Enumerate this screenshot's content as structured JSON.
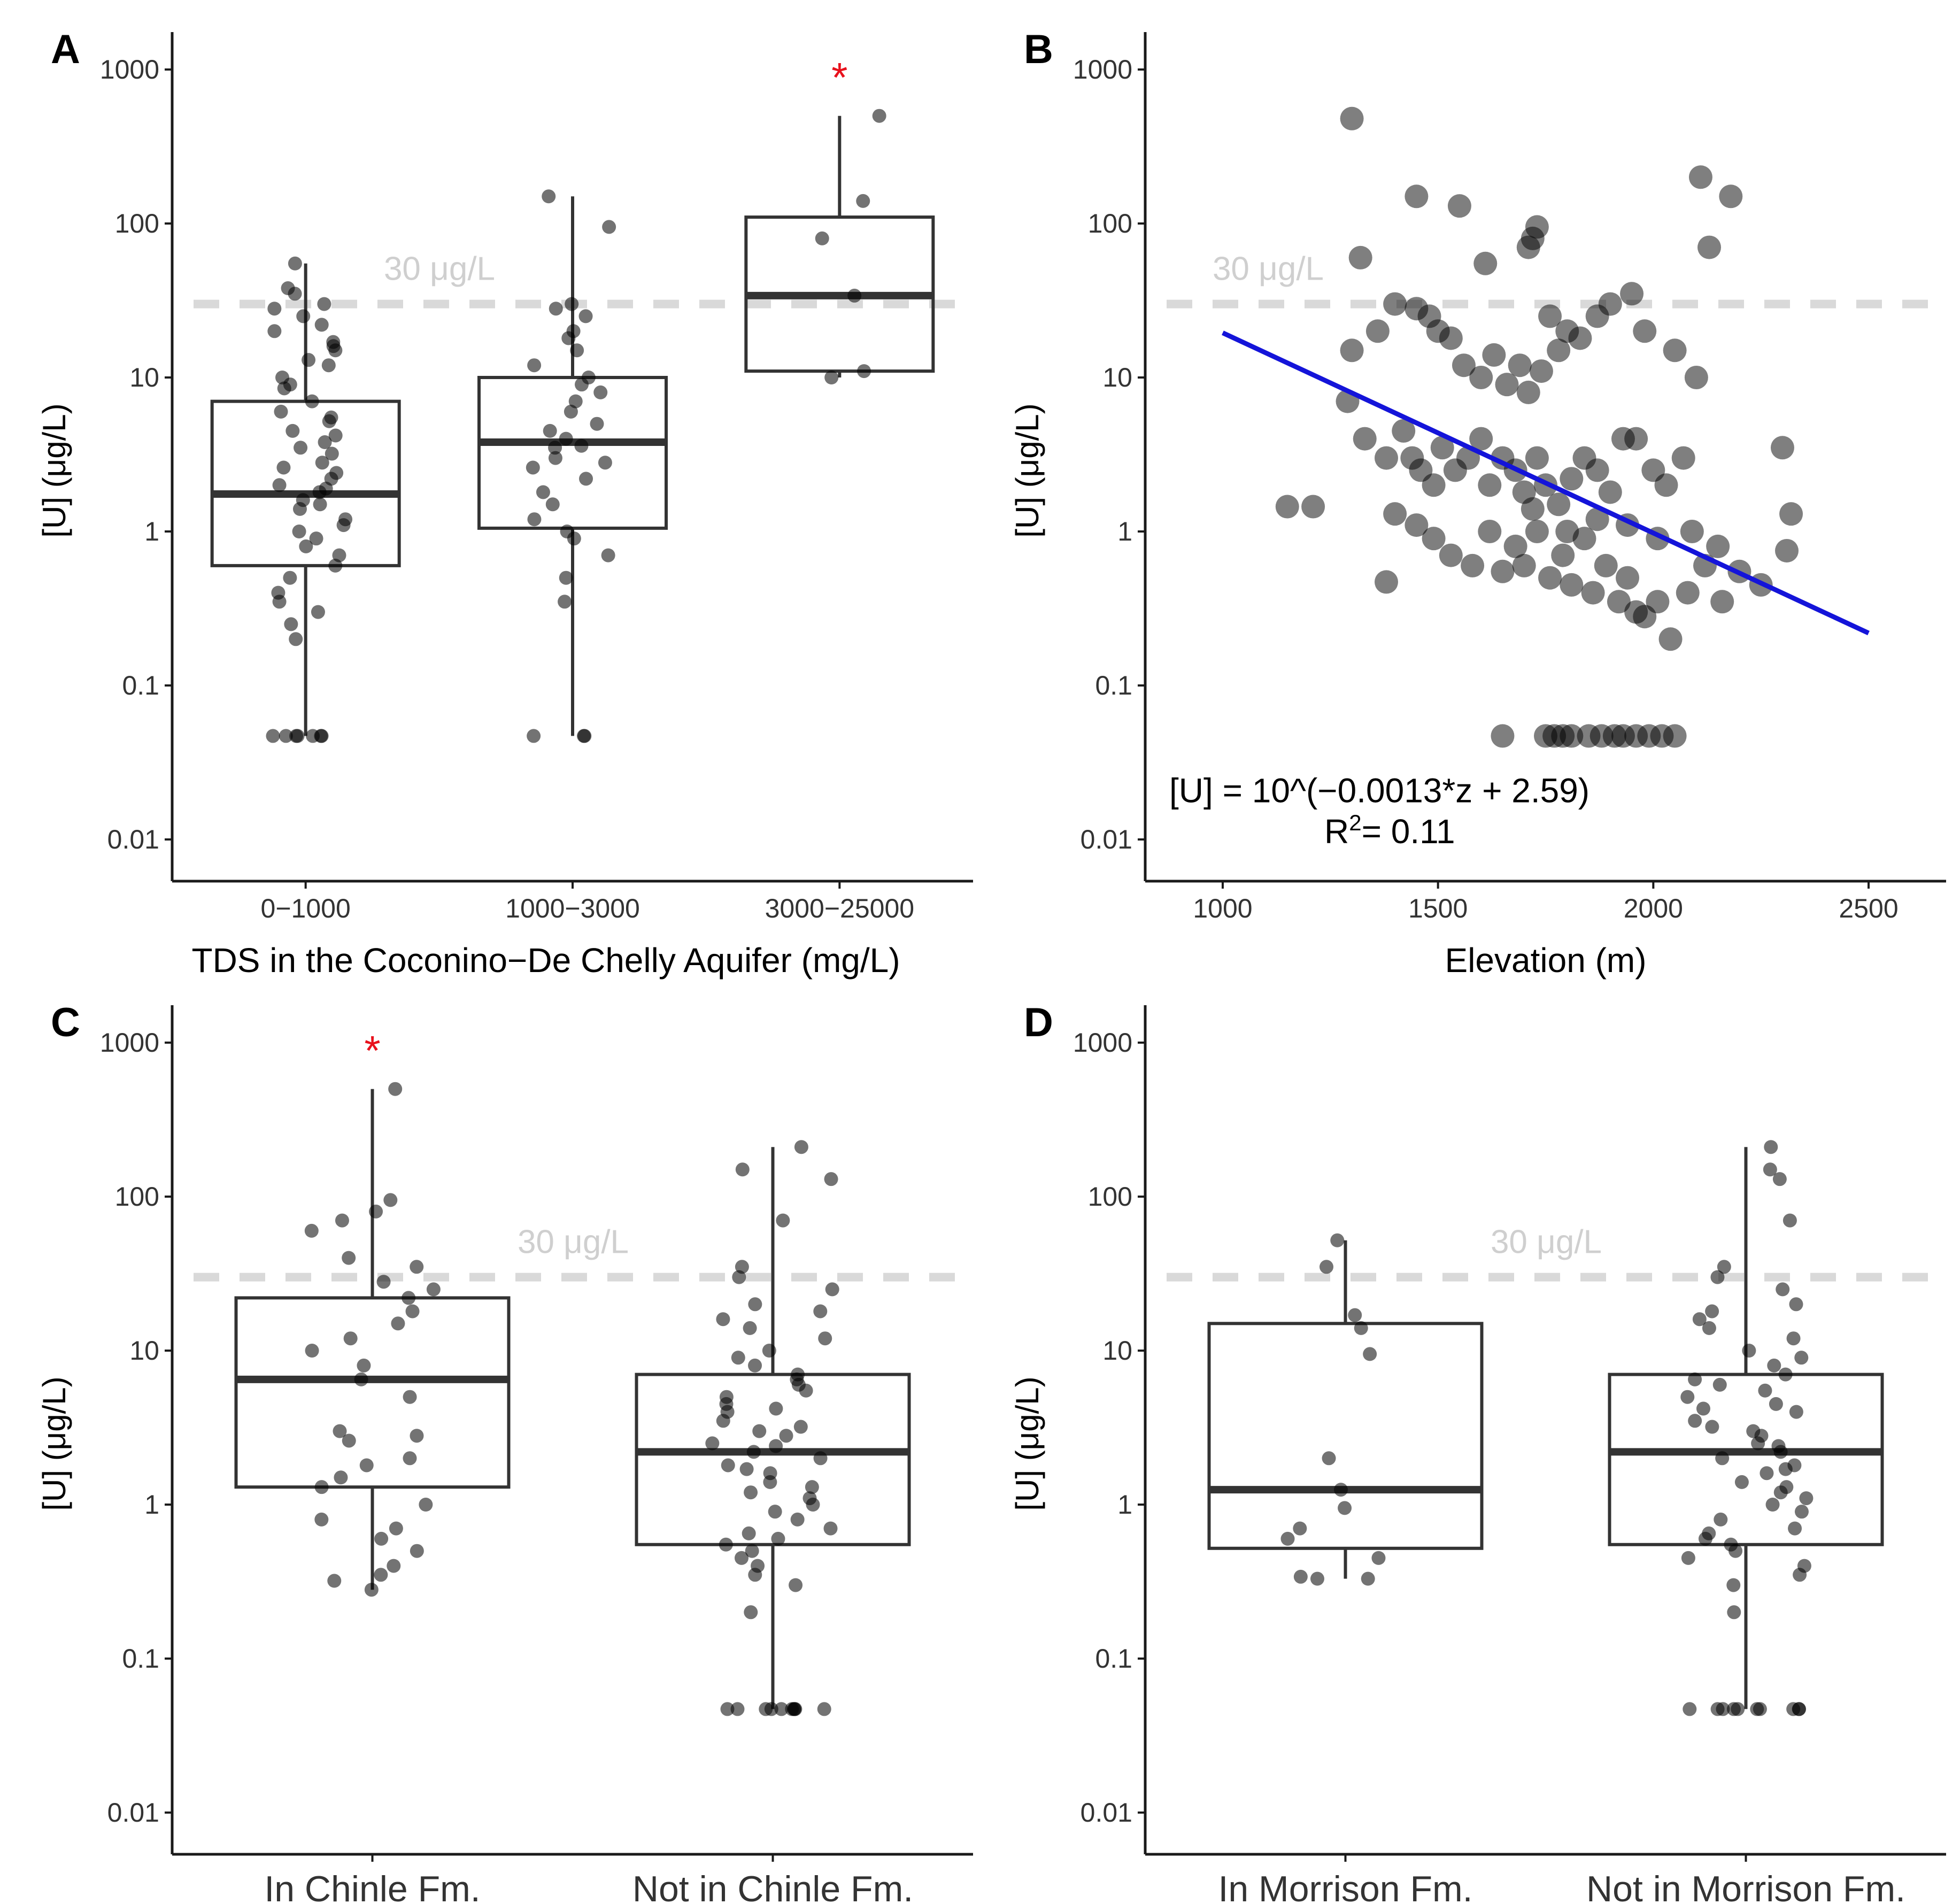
{
  "figure": {
    "threshold_label": "30 μg/L",
    "threshold_value": 30,
    "significance_marker": "*"
  },
  "chart_data": [
    {
      "panel": "A",
      "type": "boxplot",
      "ylabel": "[U] (μg/L)",
      "xlabel": "TDS in the Coconino−De Chelly Aquifer (mg/L)",
      "yscale": "log10",
      "ylim": [
        0.01,
        1000
      ],
      "yticks": [
        "1000",
        "100",
        "10",
        "1",
        "0.1",
        "0.01"
      ],
      "threshold": 30,
      "threshold_label": "30 μg/L",
      "categories": [
        "0−1000",
        "1000−3000",
        "3000−25000"
      ],
      "boxes": [
        {
          "q1": 0.6,
          "median": 1.75,
          "q3": 7.0,
          "whisker_low": 0.047,
          "whisker_high": 55
        },
        {
          "q1": 1.05,
          "median": 3.8,
          "q3": 10.0,
          "whisker_low": 0.047,
          "whisker_high": 150
        },
        {
          "q1": 11,
          "median": 34,
          "q3": 110,
          "whisker_low": 10,
          "whisker_high": 500
        }
      ],
      "points": [
        [
          0.3,
          0.5,
          0.9,
          1.2,
          1.5,
          1.8,
          2.0,
          2.4,
          2.8,
          3.2,
          3.8,
          4.5,
          5.2,
          6.0,
          7.0,
          8.5,
          10,
          12,
          15,
          17,
          20,
          25,
          30,
          35,
          38,
          55,
          0.7,
          0.6,
          1.0,
          1.4,
          2.2,
          0.35,
          0.4,
          0.25,
          0.2,
          0.8,
          1.1,
          1.6,
          1.9,
          2.6,
          3.5,
          4.2,
          5.5,
          9,
          13,
          16,
          22,
          28,
          0.047,
          0.047,
          0.047,
          0.047,
          0.047,
          0.047,
          0.047
        ],
        [
          0.35,
          0.5,
          0.7,
          1.0,
          1.2,
          1.5,
          1.8,
          2.2,
          2.6,
          3.0,
          3.5,
          4.0,
          4.5,
          5.0,
          6.0,
          7.0,
          8.0,
          9.0,
          10,
          12,
          15,
          18,
          20,
          25,
          28,
          30,
          95,
          150,
          0.9,
          2.8,
          3.6,
          0.047,
          0.047,
          0.047
        ],
        [
          10,
          11,
          34,
          80,
          140,
          500
        ]
      ],
      "significant": [
        false,
        false,
        true
      ]
    },
    {
      "panel": "B",
      "type": "scatter",
      "ylabel": "[U] (μg/L)",
      "xlabel": "Elevation (m)",
      "yscale": "log10",
      "xlim": [
        820,
        2680
      ],
      "ylim": [
        0.01,
        1000
      ],
      "xticks": [
        "1000",
        "1500",
        "2000",
        "2500"
      ],
      "yticks": [
        "1000",
        "100",
        "10",
        "1",
        "0.1",
        "0.01"
      ],
      "threshold": 30,
      "threshold_label": "30 μg/L",
      "fit": {
        "slope": -0.0013,
        "intercept": 2.59,
        "x_range": [
          1000,
          2500
        ]
      },
      "equation": "[U] = 10^(−0.0013*z + 2.59)",
      "r2_prefix": "R",
      "r2_sup": "2",
      "r2_value": "= 0.11",
      "points": [
        [
          1300,
          480
        ],
        [
          1450,
          150
        ],
        [
          1550,
          130
        ],
        [
          2110,
          200
        ],
        [
          2180,
          150
        ],
        [
          2130,
          70
        ],
        [
          1320,
          60
        ],
        [
          1720,
          80
        ],
        [
          1730,
          95
        ],
        [
          1610,
          55
        ],
        [
          1710,
          70
        ],
        [
          1300,
          15
        ],
        [
          1360,
          20
        ],
        [
          1400,
          30
        ],
        [
          1450,
          28
        ],
        [
          1480,
          25
        ],
        [
          1500,
          20
        ],
        [
          1530,
          18
        ],
        [
          1560,
          12
        ],
        [
          1600,
          10
        ],
        [
          1630,
          14
        ],
        [
          1660,
          9
        ],
        [
          1690,
          12
        ],
        [
          1710,
          8
        ],
        [
          1740,
          11
        ],
        [
          1760,
          25
        ],
        [
          1780,
          15
        ],
        [
          1800,
          20
        ],
        [
          1830,
          18
        ],
        [
          1870,
          25
        ],
        [
          1900,
          30
        ],
        [
          1950,
          35
        ],
        [
          1980,
          20
        ],
        [
          2050,
          15
        ],
        [
          2100,
          10
        ],
        [
          1290,
          7
        ],
        [
          1330,
          4
        ],
        [
          1380,
          3
        ],
        [
          1420,
          4.5
        ],
        [
          1440,
          3
        ],
        [
          1460,
          2.5
        ],
        [
          1490,
          2
        ],
        [
          1510,
          3.5
        ],
        [
          1540,
          2.5
        ],
        [
          1570,
          3
        ],
        [
          1600,
          4
        ],
        [
          1620,
          2
        ],
        [
          1650,
          3
        ],
        [
          1680,
          2.5
        ],
        [
          1700,
          1.8
        ],
        [
          1730,
          3
        ],
        [
          1750,
          2
        ],
        [
          1780,
          1.5
        ],
        [
          1810,
          2.2
        ],
        [
          1840,
          3
        ],
        [
          1870,
          2.5
        ],
        [
          1900,
          1.8
        ],
        [
          1930,
          4
        ],
        [
          1960,
          4
        ],
        [
          2000,
          2.5
        ],
        [
          2030,
          2
        ],
        [
          2070,
          3
        ],
        [
          2300,
          3.5
        ],
        [
          1150,
          1.45
        ],
        [
          1210,
          1.45
        ],
        [
          1380,
          0.47
        ],
        [
          1400,
          1.3
        ],
        [
          1450,
          1.1
        ],
        [
          1490,
          0.9
        ],
        [
          1530,
          0.7
        ],
        [
          1580,
          0.6
        ],
        [
          1620,
          1.0
        ],
        [
          1650,
          0.55
        ],
        [
          1680,
          0.8
        ],
        [
          1700,
          0.6
        ],
        [
          1730,
          1.0
        ],
        [
          1760,
          0.5
        ],
        [
          1790,
          0.7
        ],
        [
          1810,
          0.45
        ],
        [
          1840,
          0.9
        ],
        [
          1860,
          0.4
        ],
        [
          1890,
          0.6
        ],
        [
          1920,
          0.35
        ],
        [
          1940,
          0.5
        ],
        [
          1960,
          0.3
        ],
        [
          1980,
          0.28
        ],
        [
          2010,
          0.35
        ],
        [
          2040,
          0.2
        ],
        [
          2080,
          0.4
        ],
        [
          2120,
          0.6
        ],
        [
          2160,
          0.35
        ],
        [
          2200,
          0.55
        ],
        [
          2250,
          0.45
        ],
        [
          2310,
          0.75
        ],
        [
          2320,
          1.3
        ],
        [
          2150,
          0.8
        ],
        [
          2090,
          1.0
        ],
        [
          2010,
          0.9
        ],
        [
          1940,
          1.1
        ],
        [
          1870,
          1.2
        ],
        [
          1800,
          1.0
        ],
        [
          1720,
          1.4
        ],
        [
          1650,
          0.047
        ],
        [
          1750,
          0.047
        ],
        [
          1770,
          0.047
        ],
        [
          1790,
          0.047
        ],
        [
          1810,
          0.047
        ],
        [
          1850,
          0.047
        ],
        [
          1880,
          0.047
        ],
        [
          1910,
          0.047
        ],
        [
          1930,
          0.047
        ],
        [
          1960,
          0.047
        ],
        [
          1990,
          0.047
        ],
        [
          2020,
          0.047
        ],
        [
          2050,
          0.047
        ]
      ]
    },
    {
      "panel": "C",
      "type": "boxplot",
      "ylabel": "[U] (μg/L)",
      "xlabel": "",
      "yscale": "log10",
      "ylim": [
        0.01,
        1000
      ],
      "yticks": [
        "1000",
        "100",
        "10",
        "1",
        "0.1",
        "0.01"
      ],
      "threshold": 30,
      "threshold_label": "30 μg/L",
      "categories": [
        "In Chinle Fm.",
        "Not in Chinle Fm."
      ],
      "boxes": [
        {
          "q1": 1.3,
          "median": 6.5,
          "q3": 22,
          "whisker_low": 0.28,
          "whisker_high": 500
        },
        {
          "q1": 0.55,
          "median": 2.2,
          "q3": 7.0,
          "whisker_low": 0.047,
          "whisker_high": 210
        }
      ],
      "points": [
        [
          0.28,
          0.32,
          0.35,
          0.4,
          0.5,
          0.6,
          0.7,
          0.8,
          1.0,
          1.3,
          1.5,
          1.8,
          2.0,
          2.6,
          2.8,
          3.0,
          5.0,
          6.5,
          8.0,
          10,
          12,
          15,
          18,
          22,
          25,
          28,
          35,
          40,
          60,
          70,
          80,
          95,
          500
        ],
        [
          0.047,
          0.047,
          0.047,
          0.047,
          0.047,
          0.047,
          0.047,
          0.047,
          0.047,
          0.047,
          0.2,
          0.3,
          0.35,
          0.4,
          0.45,
          0.5,
          0.55,
          0.6,
          0.7,
          0.8,
          0.9,
          1.0,
          1.1,
          1.2,
          1.4,
          1.6,
          1.8,
          2.0,
          2.2,
          2.5,
          2.8,
          3.0,
          3.5,
          4.0,
          4.5,
          5.0,
          5.5,
          6.0,
          7.0,
          8.0,
          9.0,
          10,
          12,
          14,
          16,
          18,
          20,
          25,
          30,
          35,
          70,
          130,
          150,
          210,
          0.65,
          1.3,
          1.7,
          2.4,
          3.2,
          4.2,
          6.5
        ]
      ],
      "significant": [
        true,
        false
      ]
    },
    {
      "panel": "D",
      "type": "boxplot",
      "ylabel": "[U] (μg/L)",
      "xlabel": "",
      "yscale": "log10",
      "ylim": [
        0.01,
        1000
      ],
      "yticks": [
        "1000",
        "100",
        "10",
        "1",
        "0.1",
        "0.01"
      ],
      "threshold": 30,
      "threshold_label": "30 μg/L",
      "categories": [
        "In Morrison Fm.",
        "Not in Morrison Fm."
      ],
      "boxes": [
        {
          "q1": 0.52,
          "median": 1.25,
          "q3": 15,
          "whisker_low": 0.33,
          "whisker_high": 52
        },
        {
          "q1": 0.55,
          "median": 2.2,
          "q3": 7.0,
          "whisker_low": 0.047,
          "whisker_high": 210
        }
      ],
      "points": [
        [
          0.33,
          0.33,
          0.34,
          0.45,
          0.6,
          0.7,
          0.95,
          1.25,
          2.0,
          9.5,
          14,
          17,
          35,
          52
        ],
        [
          0.047,
          0.047,
          0.047,
          0.047,
          0.047,
          0.047,
          0.047,
          0.047,
          0.047,
          0.047,
          0.2,
          0.3,
          0.35,
          0.4,
          0.45,
          0.5,
          0.55,
          0.6,
          0.7,
          0.8,
          0.9,
          1.0,
          1.1,
          1.2,
          1.4,
          1.6,
          1.8,
          2.0,
          2.2,
          2.5,
          2.8,
          3.0,
          3.5,
          4.0,
          4.5,
          5.0,
          5.5,
          6.0,
          7.0,
          8.0,
          9.0,
          10,
          12,
          14,
          16,
          18,
          20,
          25,
          30,
          35,
          70,
          130,
          150,
          210,
          0.65,
          1.3,
          1.7,
          2.4,
          3.2,
          4.2,
          6.5
        ]
      ],
      "significant": [
        false,
        false
      ]
    }
  ]
}
